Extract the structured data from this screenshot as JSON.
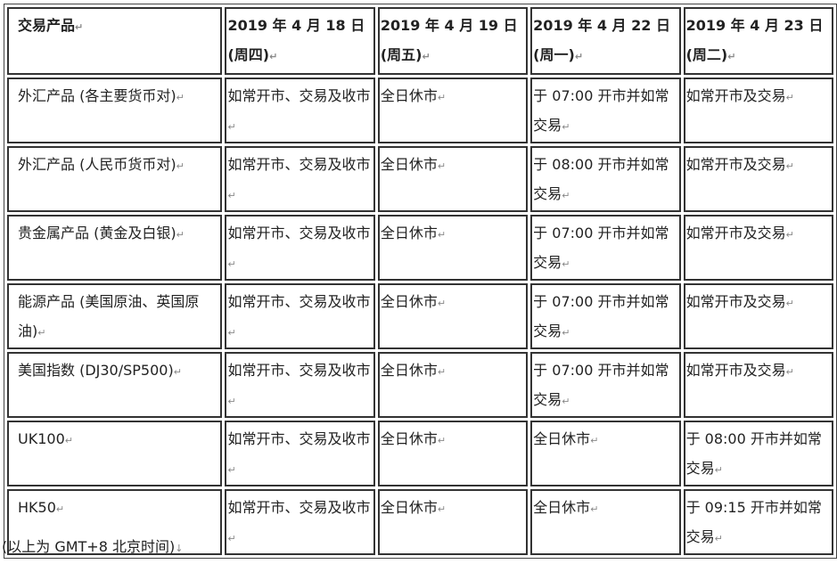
{
  "table": {
    "headers": [
      "交易产品",
      "2019 年 4 月 18 日(周四)",
      "2019 年 4 月 19 日(周五)",
      "2019 年 4 月 22 日(周一)",
      "2019 年 4 月 23 日(周二)"
    ],
    "rows": [
      [
        "外汇产品 (各主要货币对)",
        "如常开市、交易及收市",
        "全日休市",
        "于 07:00 开市并如常交易",
        "如常开市及交易"
      ],
      [
        "外汇产品 (人民币货币对)",
        "如常开市、交易及收市",
        "全日休市",
        "于 08:00 开市并如常交易",
        "如常开市及交易"
      ],
      [
        "贵金属产品 (黄金及白银)",
        "如常开市、交易及收市",
        "全日休市",
        "于 07:00 开市并如常交易",
        "如常开市及交易"
      ],
      [
        "能源产品 (美国原油、英国原油)",
        "如常开市、交易及收市",
        "全日休市",
        "于 07:00 开市并如常交易",
        "如常开市及交易"
      ],
      [
        "美国指数 (DJ30/SP500)",
        "如常开市、交易及收市",
        "全日休市",
        "于 07:00 开市并如常交易",
        "如常开市及交易"
      ],
      [
        "UK100",
        "如常开市、交易及收市",
        "全日休市",
        "全日休市",
        "于 08:00 开市并如常交易"
      ],
      [
        "HK50",
        "如常开市、交易及收市",
        "全日休市",
        "全日休市",
        "于 09:15 开市并如常交易"
      ]
    ]
  },
  "footnote": "(以上为 GMT+8  北京时间)"
}
